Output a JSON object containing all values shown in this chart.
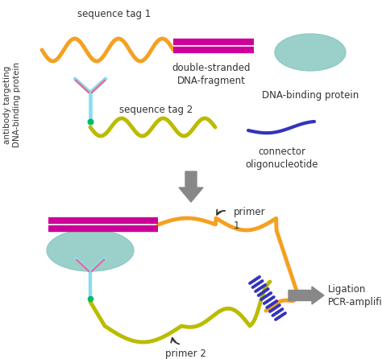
{
  "bg_color": "#ffffff",
  "orange": "#F5A020",
  "magenta": "#CC0099",
  "ygreen": "#BBBB00",
  "cyan_ab": "#88DDEE",
  "pink_ab": "#EE6699",
  "teal_prot": "#88C8C0",
  "blue_conn": "#3333BB",
  "gray_arrow": "#888888",
  "green_dot": "#00BB66",
  "text_col": "#333333",
  "lbl_seq1": "sequence tag 1",
  "lbl_seq2": "sequence tag 2",
  "lbl_dsdna": "double-stranded\nDNA-fragment",
  "lbl_dnabind": "DNA-binding protein",
  "lbl_connector": "connector\noligonucleotide",
  "lbl_antibody": "antibody targeting\nDNA-binding protein",
  "lbl_primer1": "primer\n1",
  "lbl_primer2": "primer 2",
  "lbl_ligation": "Ligation\nPCR-amplification"
}
